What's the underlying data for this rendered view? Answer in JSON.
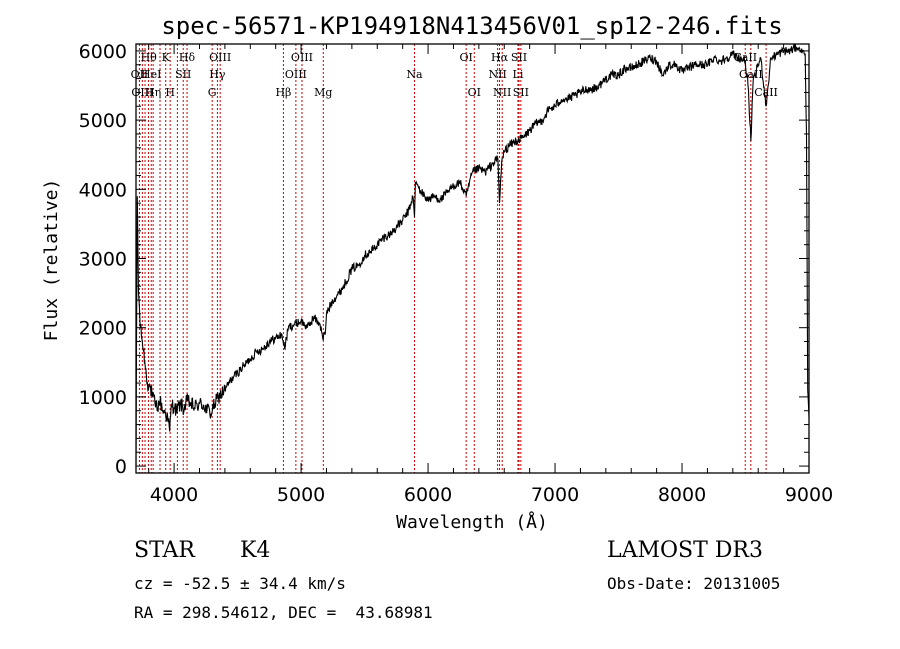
{
  "chart_data": {
    "type": "line",
    "title": "spec-56571-KP194918N413456V01_sp12-246.fits",
    "xlabel": "Wavelength (Å)",
    "ylabel": "Flux (relative)",
    "xlim": [
      3700,
      9000
    ],
    "ylim": [
      -100,
      6100
    ],
    "xticks": [
      4000,
      5000,
      6000,
      7000,
      8000,
      9000
    ],
    "yticks": [
      0,
      1000,
      2000,
      3000,
      4000,
      5000,
      6000
    ],
    "colors": {
      "line": "#000000",
      "marker": "#cc0000",
      "frame": "#000000"
    },
    "series": [
      {
        "name": "flux",
        "x": [
          3700,
          3710,
          3720,
          3735,
          3750,
          3770,
          3790,
          3810,
          3830,
          3850,
          3870,
          3890,
          3910,
          3930,
          3950,
          3965,
          3980,
          4000,
          4020,
          4050,
          4080,
          4100,
          4130,
          4160,
          4200,
          4230,
          4260,
          4290,
          4320,
          4350,
          4400,
          4450,
          4500,
          4550,
          4600,
          4650,
          4700,
          4750,
          4800,
          4850,
          4870,
          4900,
          4950,
          5000,
          5050,
          5100,
          5150,
          5170,
          5190,
          5200,
          5250,
          5300,
          5350,
          5400,
          5450,
          5500,
          5550,
          5600,
          5650,
          5700,
          5750,
          5800,
          5850,
          5880,
          5893,
          5900,
          5950,
          6000,
          6050,
          6100,
          6150,
          6200,
          6250,
          6300,
          6350,
          6400,
          6450,
          6500,
          6550,
          6563,
          6580,
          6600,
          6650,
          6700,
          6750,
          6800,
          6850,
          6900,
          6950,
          7000,
          7050,
          7100,
          7150,
          7200,
          7250,
          7300,
          7350,
          7400,
          7450,
          7500,
          7550,
          7600,
          7650,
          7700,
          7750,
          7800,
          7850,
          7900,
          7950,
          8000,
          8050,
          8100,
          8150,
          8200,
          8250,
          8300,
          8350,
          8400,
          8450,
          8498,
          8520,
          8542,
          8560,
          8600,
          8620,
          8662,
          8700,
          8750,
          8800,
          8850,
          8900,
          8950,
          8970,
          8980,
          8990,
          9000
        ],
        "values": [
          0,
          3900,
          2500,
          2000,
          1800,
          1500,
          1200,
          1150,
          1000,
          900,
          850,
          950,
          800,
          780,
          700,
          500,
          900,
          850,
          800,
          900,
          820,
          950,
          900,
          850,
          900,
          880,
          820,
          760,
          900,
          1000,
          1100,
          1250,
          1350,
          1450,
          1550,
          1650,
          1700,
          1800,
          1850,
          1900,
          1700,
          2000,
          2050,
          2100,
          2000,
          2150,
          2050,
          1850,
          1900,
          2200,
          2400,
          2500,
          2650,
          2850,
          2900,
          3050,
          3100,
          3200,
          3300,
          3350,
          3450,
          3550,
          3700,
          3900,
          3600,
          4100,
          3950,
          3850,
          3900,
          3850,
          3950,
          4050,
          4100,
          3900,
          4250,
          4300,
          4250,
          4350,
          4450,
          3800,
          4400,
          4550,
          4650,
          4700,
          4750,
          4850,
          4950,
          5000,
          5150,
          5200,
          5300,
          5300,
          5350,
          5400,
          5450,
          5450,
          5500,
          5600,
          5650,
          5650,
          5750,
          5750,
          5800,
          5850,
          5900,
          5850,
          5650,
          5800,
          5800,
          5700,
          5750,
          5800,
          5800,
          5800,
          5900,
          5850,
          5900,
          5950,
          5900,
          5850,
          5500,
          4700,
          5550,
          5800,
          5900,
          5200,
          5900,
          5950,
          6000,
          6000,
          6050,
          6000,
          5950,
          4800,
          1100,
          700
        ]
      }
    ],
    "line_markers": [
      3727,
      3750,
      3771,
      3798,
      3820,
      3835,
      3889,
      3934,
      3969,
      4026,
      4072,
      4102,
      4300,
      4341,
      4363,
      4861,
      4959,
      5007,
      5175,
      5893,
      6300,
      6364,
      6548,
      6563,
      6584,
      6708,
      6716,
      6731,
      8498,
      8542,
      8662
    ],
    "line_labels": [
      {
        "text": "Hθ",
        "w": 3800,
        "row": 0
      },
      {
        "text": "K",
        "w": 3934,
        "row": 0
      },
      {
        "text": "Hδ",
        "w": 4102,
        "row": 0
      },
      {
        "text": "OIII",
        "w": 4363,
        "row": 0
      },
      {
        "text": "OIII",
        "w": 5007,
        "row": 0
      },
      {
        "text": "OI",
        "w": 6300,
        "row": 0
      },
      {
        "text": "Hα",
        "w": 6563,
        "row": 0
      },
      {
        "text": "SII",
        "w": 6716,
        "row": 0
      },
      {
        "text": "CaII",
        "w": 8498,
        "row": 0
      },
      {
        "text": "OII",
        "w": 3727,
        "row": 1
      },
      {
        "text": "HeI",
        "w": 3820,
        "row": 1
      },
      {
        "text": "SII",
        "w": 4072,
        "row": 1
      },
      {
        "text": "Hγ",
        "w": 4341,
        "row": 1
      },
      {
        "text": "OIII",
        "w": 4959,
        "row": 1
      },
      {
        "text": "Na",
        "w": 5893,
        "row": 1
      },
      {
        "text": "NII",
        "w": 6548,
        "row": 1
      },
      {
        "text": "Li",
        "w": 6708,
        "row": 1
      },
      {
        "text": "CaII",
        "w": 8542,
        "row": 1
      },
      {
        "text": "OIII",
        "w": 3750,
        "row": 2
      },
      {
        "text": "Hη",
        "w": 3835,
        "row": 2
      },
      {
        "text": "H",
        "w": 3969,
        "row": 2
      },
      {
        "text": "G",
        "w": 4300,
        "row": 2
      },
      {
        "text": "Hβ",
        "w": 4861,
        "row": 2
      },
      {
        "text": "Mg",
        "w": 5175,
        "row": 2
      },
      {
        "text": "OI",
        "w": 6364,
        "row": 2
      },
      {
        "text": "NII",
        "w": 6584,
        "row": 2
      },
      {
        "text": "SII",
        "w": 6731,
        "row": 2
      },
      {
        "text": "CaII",
        "w": 8662,
        "row": 2
      }
    ]
  },
  "footer": {
    "class_label": "STAR",
    "subclass": "K4",
    "survey": "LAMOST DR3",
    "redshift_line": "cz = -52.5 ± 34.4 km/s",
    "obs_date_line": "Obs-Date: 20131005",
    "coords_line": "RA = 298.54612, DEC =  43.68981"
  }
}
